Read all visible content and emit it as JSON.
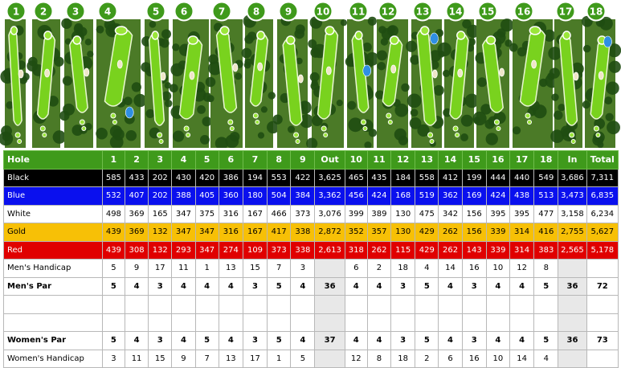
{
  "holes": [
    "1",
    "2",
    "3",
    "4",
    "5",
    "6",
    "7",
    "8",
    "9",
    "10",
    "11",
    "12",
    "13",
    "14",
    "15",
    "16",
    "17",
    "18"
  ],
  "colors": {
    "header": "#3f9a1b",
    "black": "#000000",
    "blue": "#0a10ee",
    "white": "#ffffff",
    "gold": "#f7c006",
    "red": "#e00000",
    "fairway": "#79d21e",
    "rough": "#4b7a27",
    "trees": "#1f4d12",
    "sand": "#efe6c8",
    "water": "#2f8fe3"
  },
  "scorecard": {
    "columns": [
      "Hole",
      "1",
      "2",
      "3",
      "4",
      "5",
      "6",
      "7",
      "8",
      "9",
      "Out",
      "10",
      "11",
      "12",
      "13",
      "14",
      "15",
      "16",
      "17",
      "18",
      "In",
      "Total"
    ],
    "rows": [
      {
        "key": "black",
        "label": "Black",
        "values": [
          "585",
          "433",
          "202",
          "430",
          "420",
          "386",
          "194",
          "553",
          "422",
          "3,625",
          "465",
          "435",
          "184",
          "558",
          "412",
          "199",
          "444",
          "440",
          "549",
          "3,686",
          "7,311"
        ]
      },
      {
        "key": "blue",
        "label": "Blue",
        "values": [
          "532",
          "407",
          "202",
          "388",
          "405",
          "360",
          "180",
          "504",
          "384",
          "3,362",
          "456",
          "424",
          "168",
          "519",
          "362",
          "169",
          "424",
          "438",
          "513",
          "3,473",
          "6,835"
        ]
      },
      {
        "key": "white",
        "label": "White",
        "values": [
          "498",
          "369",
          "165",
          "347",
          "375",
          "316",
          "167",
          "466",
          "373",
          "3,076",
          "399",
          "389",
          "130",
          "475",
          "342",
          "156",
          "395",
          "395",
          "477",
          "3,158",
          "6,234"
        ]
      },
      {
        "key": "gold",
        "label": "Gold",
        "values": [
          "439",
          "369",
          "132",
          "347",
          "347",
          "316",
          "167",
          "417",
          "338",
          "2,872",
          "352",
          "357",
          "130",
          "429",
          "262",
          "156",
          "339",
          "314",
          "416",
          "2,755",
          "5,627"
        ]
      },
      {
        "key": "red",
        "label": "Red",
        "values": [
          "439",
          "308",
          "132",
          "293",
          "347",
          "274",
          "109",
          "373",
          "338",
          "2,613",
          "318",
          "262",
          "115",
          "429",
          "262",
          "143",
          "339",
          "314",
          "383",
          "2,565",
          "5,178"
        ]
      },
      {
        "key": "mhcp",
        "label": "Men's Handicap",
        "values": [
          "5",
          "9",
          "17",
          "11",
          "1",
          "13",
          "15",
          "7",
          "3",
          "",
          "6",
          "2",
          "18",
          "4",
          "14",
          "16",
          "10",
          "12",
          "8",
          "",
          ""
        ]
      },
      {
        "key": "mpar",
        "label": "Men's Par",
        "values": [
          "5",
          "4",
          "3",
          "4",
          "4",
          "4",
          "3",
          "5",
          "4",
          "36",
          "4",
          "4",
          "3",
          "5",
          "4",
          "3",
          "4",
          "4",
          "5",
          "36",
          "72"
        ]
      },
      {
        "key": "blank1",
        "label": "",
        "values": [
          "",
          "",
          "",
          "",
          "",
          "",
          "",
          "",
          "",
          "",
          "",
          "",
          "",
          "",
          "",
          "",
          "",
          "",
          "",
          "",
          ""
        ]
      },
      {
        "key": "blank2",
        "label": "",
        "values": [
          "",
          "",
          "",
          "",
          "",
          "",
          "",
          "",
          "",
          "",
          "",
          "",
          "",
          "",
          "",
          "",
          "",
          "",
          "",
          "",
          ""
        ]
      },
      {
        "key": "wpar",
        "label": "Women's Par",
        "values": [
          "5",
          "4",
          "3",
          "4",
          "5",
          "4",
          "3",
          "5",
          "4",
          "37",
          "4",
          "4",
          "3",
          "5",
          "4",
          "3",
          "4",
          "4",
          "5",
          "36",
          "73"
        ]
      },
      {
        "key": "whcp",
        "label": "Women's Handicap",
        "values": [
          "3",
          "11",
          "15",
          "9",
          "7",
          "13",
          "17",
          "1",
          "5",
          "",
          "12",
          "8",
          "18",
          "2",
          "6",
          "16",
          "10",
          "14",
          "4",
          "",
          ""
        ]
      }
    ]
  }
}
